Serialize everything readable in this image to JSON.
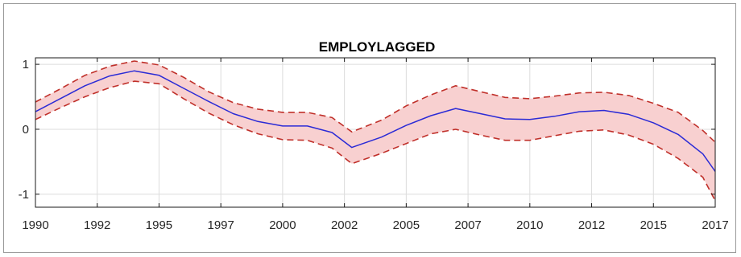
{
  "chart_data": {
    "type": "line",
    "title": "EMPLOYLAGGED",
    "xlabel": "",
    "ylabel": "",
    "xlim": [
      1990,
      2017.5
    ],
    "ylim": [
      -1.2,
      1.1
    ],
    "grid": true,
    "x_ticks": [
      1990,
      1992.5,
      1995,
      1997.5,
      2000,
      2002.5,
      2005,
      2007.5,
      2010,
      2012.5,
      2015,
      2017.5
    ],
    "x_tick_labels": [
      "1990",
      "1992",
      "1995",
      "1997",
      "2000",
      "2002",
      "2005",
      "2007",
      "2010",
      "2012",
      "2015",
      "2017"
    ],
    "y_ticks": [
      -1,
      0,
      1
    ],
    "y_tick_labels": [
      "-1",
      "0",
      "1"
    ],
    "x": [
      1990,
      1991,
      1992,
      1993,
      1994,
      1995,
      1996,
      1997,
      1998,
      1999,
      2000,
      2001,
      2002,
      2002.8,
      2004,
      2005,
      2006,
      2007,
      2008,
      2009,
      2010,
      2011,
      2012,
      2013,
      2014,
      2015,
      2016,
      2017,
      2017.5
    ],
    "series": [
      {
        "values": [
          0.27,
          0.47,
          0.67,
          0.82,
          0.9,
          0.83,
          0.63,
          0.43,
          0.24,
          0.12,
          0.05,
          0.05,
          -0.05,
          -0.28,
          -0.12,
          0.06,
          0.21,
          0.32,
          0.24,
          0.16,
          0.15,
          0.2,
          0.27,
          0.29,
          0.23,
          0.1,
          -0.08,
          -0.38,
          -0.65
        ],
        "color": "#2b2bd6",
        "style": "solid"
      },
      {
        "values": [
          0.42,
          0.62,
          0.83,
          0.97,
          1.05,
          0.99,
          0.8,
          0.58,
          0.41,
          0.31,
          0.26,
          0.26,
          0.18,
          -0.04,
          0.14,
          0.36,
          0.53,
          0.67,
          0.58,
          0.49,
          0.47,
          0.51,
          0.56,
          0.57,
          0.52,
          0.4,
          0.26,
          -0.02,
          -0.2
        ],
        "color": "#c0302a",
        "style": "dashed"
      },
      {
        "values": [
          0.15,
          0.33,
          0.5,
          0.64,
          0.74,
          0.7,
          0.47,
          0.25,
          0.07,
          -0.07,
          -0.16,
          -0.17,
          -0.29,
          -0.53,
          -0.37,
          -0.22,
          -0.07,
          0.0,
          -0.09,
          -0.17,
          -0.17,
          -0.1,
          -0.03,
          -0.01,
          -0.09,
          -0.23,
          -0.45,
          -0.74,
          -1.1
        ]
      }
    ],
    "band_fill": "#f8d0d0",
    "band_line_color": "#c0302a"
  }
}
